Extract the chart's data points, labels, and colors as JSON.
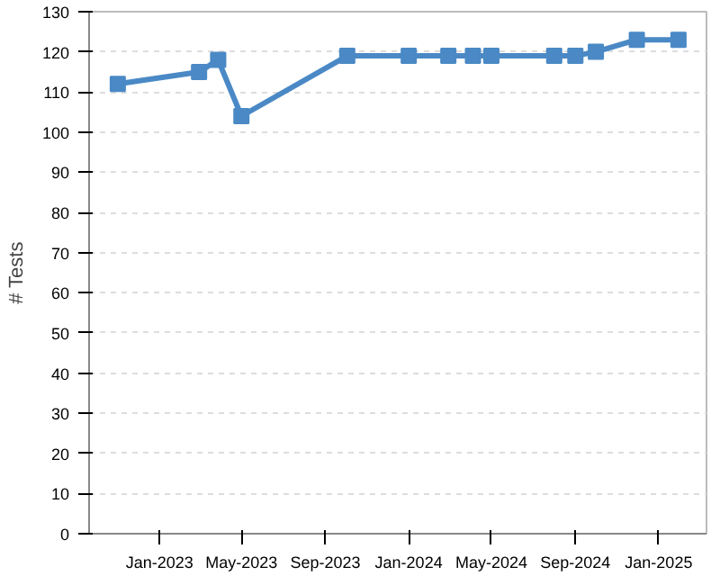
{
  "chart_data": {
    "type": "line",
    "ylabel": "# Tests",
    "x": [
      "2022-11-01",
      "2023-02-28",
      "2023-03-28",
      "2023-05-01",
      "2023-10-03",
      "2024-01-01",
      "2024-02-28",
      "2024-04-04",
      "2024-05-01",
      "2024-08-01",
      "2024-09-01",
      "2024-10-01",
      "2024-11-30",
      "2025-01-30"
    ],
    "series": [
      {
        "color": "#4a89c5",
        "values": [
          112,
          115,
          118,
          104,
          119,
          119,
          119,
          119,
          119,
          119,
          119,
          120,
          123,
          123
        ]
      }
    ],
    "xlim": [
      "2022-09-20",
      "2025-03-12"
    ],
    "xticks": [
      {
        "value": "2023-01",
        "label": "Jan-2023"
      },
      {
        "value": "2023-05",
        "label": "May-2023"
      },
      {
        "value": "2023-09",
        "label": "Sep-2023"
      },
      {
        "value": "2024-01",
        "label": "Jan-2024"
      },
      {
        "value": "2024-05",
        "label": "May-2024"
      },
      {
        "value": "2024-09",
        "label": "Sep-2024"
      },
      {
        "value": "2025-01",
        "label": "Jan-2025"
      }
    ],
    "ylim": [
      0,
      130
    ],
    "yticks": [
      0,
      10,
      20,
      30,
      40,
      50,
      60,
      70,
      80,
      90,
      100,
      110,
      120,
      130
    ],
    "grid": "y",
    "marker": "square",
    "line_style": "solid"
  }
}
